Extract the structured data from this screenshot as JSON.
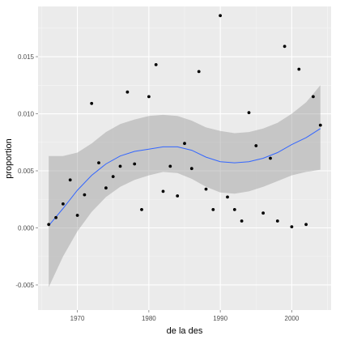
{
  "chart_data": {
    "type": "scatter",
    "title": "",
    "xlabel": "de la des",
    "ylabel": "proportion",
    "xlim": [
      1964.5,
      2005.5
    ],
    "ylim": [
      -0.0072,
      0.0194
    ],
    "grid": true,
    "x_ticks": [
      1970,
      1980,
      1990,
      2000
    ],
    "x_tick_labels": [
      "1970",
      "1980",
      "1990",
      "2000"
    ],
    "y_ticks": [
      -0.005,
      0.0,
      0.005,
      0.01,
      0.015
    ],
    "y_tick_labels": [
      "-0.005",
      "0.000",
      "0.005",
      "0.010",
      "0.015"
    ],
    "points": [
      [
        1966,
        0.0003
      ],
      [
        1967,
        0.0009
      ],
      [
        1968,
        0.0021
      ],
      [
        1969,
        0.0042
      ],
      [
        1970,
        0.0011
      ],
      [
        1971,
        0.0029
      ],
      [
        1972,
        0.0109
      ],
      [
        1973,
        0.0057
      ],
      [
        1974,
        0.0035
      ],
      [
        1975,
        0.0045
      ],
      [
        1976,
        0.0054
      ],
      [
        1977,
        0.0119
      ],
      [
        1978,
        0.0056
      ],
      [
        1979,
        0.0016
      ],
      [
        1980,
        0.0115
      ],
      [
        1981,
        0.0143
      ],
      [
        1982,
        0.0032
      ],
      [
        1983,
        0.0054
      ],
      [
        1984,
        0.0028
      ],
      [
        1985,
        0.0074
      ],
      [
        1986,
        0.0052
      ],
      [
        1987,
        0.0137
      ],
      [
        1988,
        0.0034
      ],
      [
        1989,
        0.0016
      ],
      [
        1990,
        0.0186
      ],
      [
        1991,
        0.0027
      ],
      [
        1992,
        0.0016
      ],
      [
        1993,
        0.0006
      ],
      [
        1994,
        0.0101
      ],
      [
        1995,
        0.0072
      ],
      [
        1996,
        0.0013
      ],
      [
        1997,
        0.0061
      ],
      [
        1998,
        0.0006
      ],
      [
        1999,
        0.0159
      ],
      [
        2000,
        0.0001
      ],
      [
        2001,
        0.0139
      ],
      [
        2002,
        0.0003
      ],
      [
        2003,
        0.0115
      ],
      [
        2004,
        0.009
      ]
    ],
    "smooth": {
      "method": "loess",
      "x": [
        1966,
        1968,
        1970,
        1972,
        1974,
        1976,
        1978,
        1980,
        1982,
        1984,
        1986,
        1988,
        1990,
        1992,
        1994,
        1996,
        1998,
        2000,
        2002,
        2004
      ],
      "y": [
        0.0002,
        0.0017,
        0.0033,
        0.0046,
        0.0056,
        0.0063,
        0.0067,
        0.0069,
        0.0071,
        0.0071,
        0.0068,
        0.0062,
        0.0058,
        0.0057,
        0.0058,
        0.0061,
        0.0066,
        0.0073,
        0.0079,
        0.0087
      ],
      "lower": [
        -0.0052,
        -0.0025,
        -0.0003,
        0.0014,
        0.0027,
        0.0036,
        0.0042,
        0.0046,
        0.0049,
        0.0048,
        0.0043,
        0.0036,
        0.0031,
        0.003,
        0.0032,
        0.0036,
        0.0041,
        0.0046,
        0.0049,
        0.0051
      ],
      "upper": [
        0.0063,
        0.0063,
        0.0066,
        0.0074,
        0.0084,
        0.0091,
        0.0095,
        0.0098,
        0.0099,
        0.0098,
        0.0094,
        0.0088,
        0.0085,
        0.0083,
        0.0084,
        0.0087,
        0.0092,
        0.01,
        0.011,
        0.0125
      ]
    },
    "colors": {
      "panel_background": "#ebebeb",
      "grid_major": "#ffffff",
      "grid_minor": "#f5f5f5",
      "point": "#000000",
      "smooth_line": "#3366ff",
      "ribbon": "#999999"
    }
  }
}
